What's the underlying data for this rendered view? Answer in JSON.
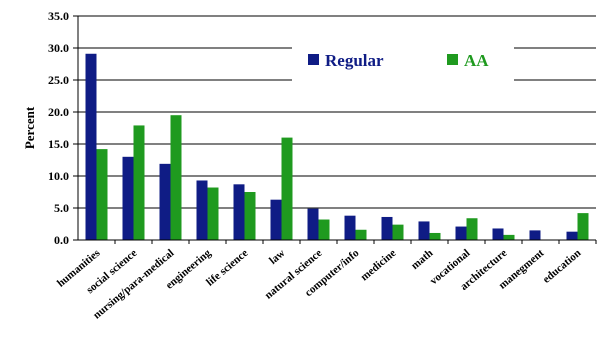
{
  "chart_data": {
    "type": "bar",
    "ylabel": "Percent",
    "ylim": [
      0,
      35
    ],
    "yticks": [
      "0.0",
      "5.0",
      "10.0",
      "15.0",
      "20.0",
      "25.0",
      "30.0",
      "35.0"
    ],
    "grid": "horizontal",
    "legend_position": "top-right",
    "categories": [
      "humanities",
      "social science",
      "nursing/para-medical",
      "engineering",
      "life science",
      "law",
      "natural science",
      "computer/info",
      "medicine",
      "math",
      "vocational",
      "architecture",
      "manegment",
      "education"
    ],
    "series": [
      {
        "name": "Regular",
        "color": "#0f1c85",
        "values": [
          29.1,
          13.0,
          11.9,
          9.3,
          8.7,
          6.3,
          4.9,
          3.8,
          3.6,
          2.9,
          2.1,
          1.8,
          1.5,
          1.3
        ]
      },
      {
        "name": "AA",
        "color": "#1f9a1f",
        "values": [
          14.2,
          17.9,
          19.5,
          8.2,
          7.5,
          16.0,
          3.2,
          1.6,
          2.4,
          1.1,
          3.4,
          0.8,
          0.0,
          4.2
        ]
      }
    ]
  }
}
